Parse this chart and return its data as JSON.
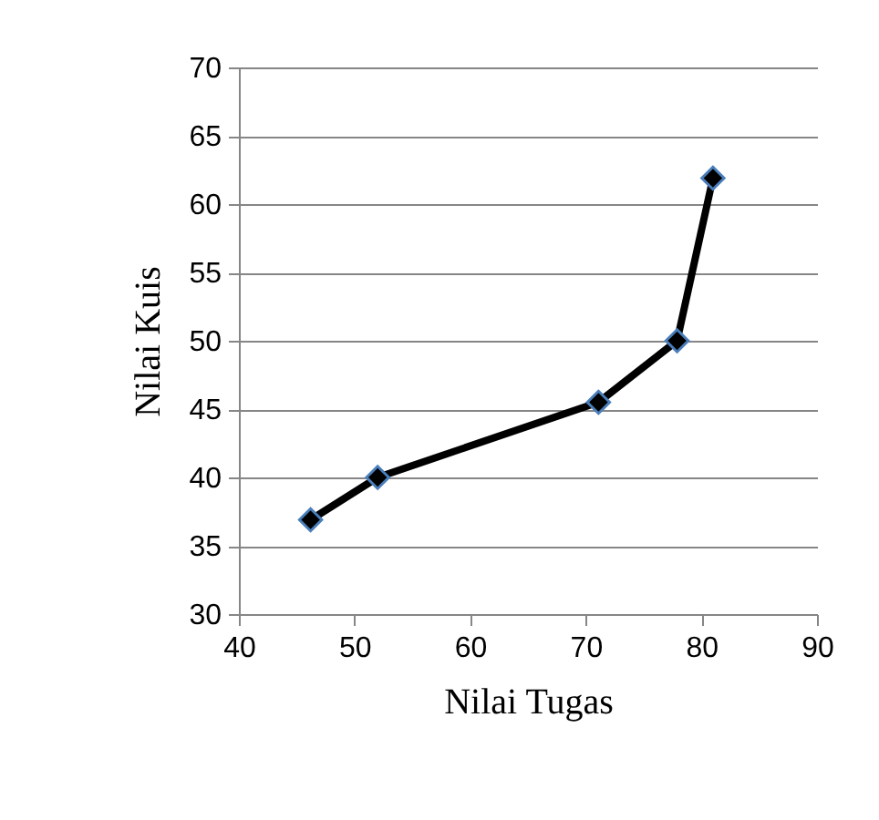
{
  "chart_data": {
    "type": "line",
    "xlabel": "Nilai Tugas",
    "ylabel": "Nilai Kuis",
    "x": [
      46.2,
      52,
      71.1,
      77.9,
      81
    ],
    "series": [
      {
        "color": "#000000",
        "values": [
          36.9,
          40,
          45.5,
          50,
          61.9
        ]
      }
    ],
    "xlim": [
      40,
      90
    ],
    "xticks": [
      40,
      50,
      60,
      70,
      80,
      90
    ],
    "ylim": [
      30,
      70
    ],
    "yticks": [
      30,
      35,
      40,
      45,
      50,
      55,
      60,
      65,
      70
    ],
    "grid": "y",
    "marker": "diamond",
    "line_style": "solid",
    "legend": false
  }
}
